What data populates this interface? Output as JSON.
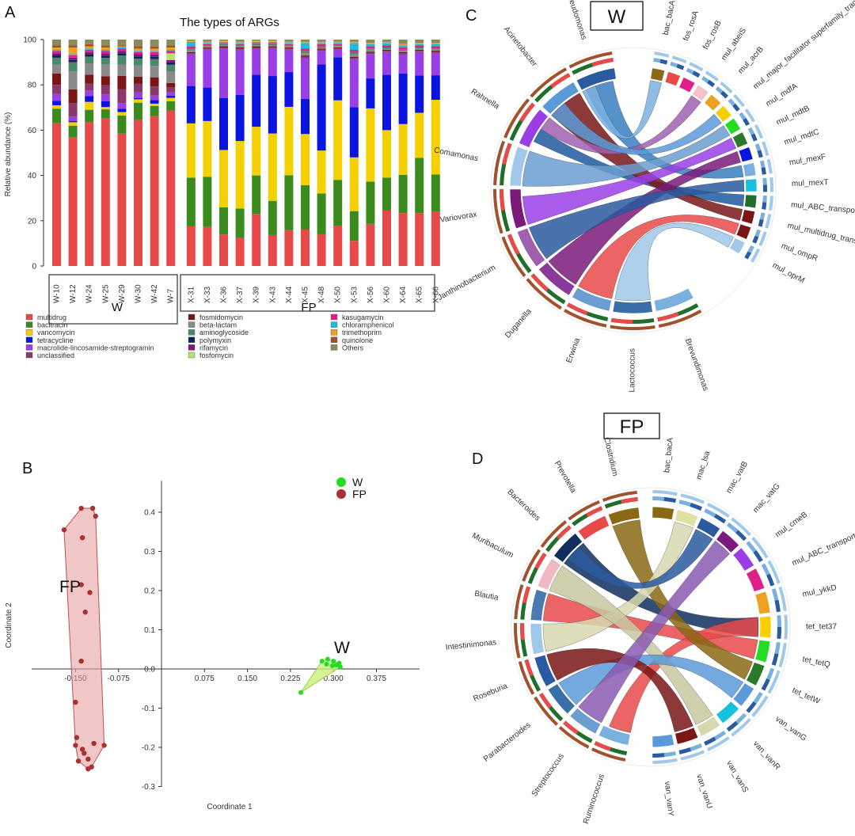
{
  "panels": {
    "A": {
      "letter": "A",
      "title": "The types of ARGs"
    },
    "B": {
      "letter": "B"
    },
    "C": {
      "letter": "C",
      "box_label": "W"
    },
    "D": {
      "letter": "D",
      "box_label": "FP"
    }
  },
  "colors": {
    "multidrug": "#e84a4a",
    "bacitracin": "#3a8a1e",
    "vancomycin": "#f5d000",
    "tetracycline": "#0a14e0",
    "macrolide-lincosamide-streptogramin": "#9a3ee6",
    "unclassified": "#8a3a6a",
    "fosmidomycin": "#7a1616",
    "beta-lactam": "#8a8a8a",
    "aminoglycoside": "#4a8a6a",
    "polymyxin": "#142060",
    "rifamycin": "#7a1a7a",
    "fosfomycin": "#b8e06a",
    "kasugamycin": "#e0208a",
    "chloramphenicol": "#18c0e0",
    "trimethoprim": "#f0a020",
    "quinolone": "#a0522d",
    "Others": "#8a8a5a",
    "W_point": "#22dd22",
    "FP_point": "#a83232",
    "W_hull": "#c8f07a",
    "FP_hull": "#e8a0a0"
  },
  "chart_data": [
    {
      "type": "bar",
      "stacked": true,
      "title": "The types of ARGs",
      "xlabel": "",
      "ylabel": "Relative abundance (%)",
      "ylim": [
        0,
        100
      ],
      "yticks": [
        0,
        20,
        40,
        60,
        80,
        100
      ],
      "groups": [
        {
          "name": "W",
          "categories": [
            "W-10",
            "W-12",
            "W-24",
            "W-25",
            "W-29",
            "W-30",
            "W-42",
            "W-7"
          ]
        },
        {
          "name": "FP",
          "categories": [
            "X-31",
            "X-33",
            "X-36",
            "X-37",
            "X-39",
            "X-43",
            "X-44",
            "X-45",
            "X-48",
            "X-50",
            "X-53",
            "X-56",
            "X-60",
            "X-64",
            "X-65",
            "X-66"
          ]
        }
      ],
      "categories": [
        "W-10",
        "W-12",
        "W-24",
        "W-25",
        "W-29",
        "W-30",
        "W-42",
        "W-7",
        "X-31",
        "X-33",
        "X-36",
        "X-37",
        "X-39",
        "X-43",
        "X-44",
        "X-45",
        "X-48",
        "X-50",
        "X-53",
        "X-56",
        "X-60",
        "X-64",
        "X-65",
        "X-66"
      ],
      "series": [
        {
          "name": "multidrug",
          "values": [
            63,
            57,
            63.5,
            64.5,
            58.5,
            65,
            65.5,
            68,
            17.5,
            17.5,
            14,
            12.5,
            23,
            14,
            16,
            16,
            14,
            18,
            11,
            19,
            24.5,
            23.5,
            23.5,
            24.5
          ]
        },
        {
          "name": "bacitracin",
          "values": [
            6.5,
            5,
            5.5,
            4,
            8,
            7.5,
            4.5,
            4,
            21.5,
            22.5,
            12,
            13,
            17,
            15.5,
            24.5,
            19.5,
            18,
            21,
            13,
            19,
            14.5,
            17,
            24.5,
            16.5
          ]
        },
        {
          "name": "vancomycin",
          "values": [
            1.5,
            1.5,
            3.5,
            1,
            1.5,
            1.5,
            1,
            1.5,
            24,
            25,
            25.5,
            30,
            21.5,
            30.5,
            30.5,
            22.5,
            19,
            36,
            23.5,
            33,
            21,
            22.5,
            20,
            33.5
          ]
        },
        {
          "name": "tetracycline",
          "values": [
            2,
            0.5,
            2.5,
            2.5,
            1.5,
            0.5,
            1.5,
            1,
            16.5,
            15,
            23,
            20.5,
            23,
            26,
            15.5,
            15.5,
            38,
            19.5,
            22,
            13.5,
            24.5,
            22.5,
            16.5,
            11
          ]
        },
        {
          "name": "macrolide-lincosamide-streptogramin",
          "values": [
            3,
            2,
            2.5,
            3,
            2.5,
            2.5,
            2,
            1.5,
            14,
            17,
            22,
            20,
            11.5,
            12.5,
            10,
            18,
            6,
            3.5,
            21,
            11,
            10,
            8.5,
            10.5,
            10
          ]
        },
        {
          "name": "unclassified",
          "values": [
            4,
            6,
            3,
            4,
            6,
            4,
            4,
            2,
            0.5,
            0.5,
            0.5,
            0.5,
            0.5,
            0.5,
            0.5,
            0.5,
            0.5,
            0.5,
            0.5,
            0.5,
            0.5,
            0.5,
            0.5,
            0.5
          ]
        },
        {
          "name": "fosmidomycin",
          "values": [
            5,
            6,
            4,
            4,
            6,
            3,
            4,
            2,
            0.5,
            0.5,
            0.5,
            0.5,
            0.5,
            0.5,
            0.5,
            0.5,
            0.5,
            0.5,
            0.5,
            0.5,
            0.5,
            0.5,
            0.5,
            0.5
          ]
        },
        {
          "name": "beta-lactam",
          "values": [
            4,
            8,
            5,
            5,
            5,
            5,
            5,
            5,
            1,
            0.5,
            0.5,
            0.5,
            0.5,
            0.5,
            0.5,
            1,
            0.5,
            0.5,
            1,
            1,
            0.5,
            0.5,
            0.5,
            0.5
          ]
        },
        {
          "name": "aminoglycoside",
          "values": [
            3,
            4,
            3,
            3,
            4,
            3,
            3,
            3,
            0.5,
            0.5,
            0.5,
            0.5,
            0.5,
            0.5,
            0.5,
            1,
            0.5,
            0.5,
            1,
            0.5,
            0.5,
            0.5,
            0.5,
            0.5
          ]
        },
        {
          "name": "polymyxin",
          "values": [
            1,
            1,
            1,
            1,
            1,
            1,
            1,
            1,
            0,
            0,
            0,
            0,
            0,
            0,
            0,
            0,
            0,
            0,
            0,
            0,
            0,
            0,
            0,
            0
          ]
        },
        {
          "name": "rifamycin",
          "values": [
            1,
            1,
            1,
            1,
            1,
            1,
            1,
            1,
            0,
            0,
            0,
            0,
            0,
            0,
            0,
            0,
            0,
            0,
            0,
            0,
            0,
            0,
            0,
            0
          ]
        },
        {
          "name": "fosfomycin",
          "values": [
            0,
            0,
            0,
            0,
            0,
            0,
            0,
            3,
            0,
            0,
            0,
            0,
            0,
            0,
            0,
            0,
            0,
            0,
            0,
            0,
            0,
            0,
            0,
            0
          ]
        },
        {
          "name": "kasugamycin",
          "values": [
            1,
            1,
            1,
            1,
            1,
            1,
            1,
            1,
            1,
            0.5,
            0.5,
            0.5,
            0.5,
            0.5,
            0.5,
            1,
            1,
            0.5,
            1,
            1,
            1,
            1,
            1,
            1
          ]
        },
        {
          "name": "chloramphenicol",
          "values": [
            0.5,
            0.5,
            0.5,
            0.5,
            0.5,
            0.5,
            0.5,
            0.5,
            2,
            0.5,
            0.5,
            0.5,
            0.5,
            0.5,
            0.5,
            2.5,
            0.5,
            0.5,
            3,
            1,
            1,
            1,
            0.5,
            1
          ]
        },
        {
          "name": "trimethoprim",
          "values": [
            1,
            3,
            1,
            1,
            0.5,
            1,
            1,
            1,
            0.5,
            0.5,
            0.5,
            0.5,
            0.5,
            0.5,
            0.5,
            0.5,
            0.5,
            0.5,
            0.5,
            0.5,
            0.5,
            0.5,
            0.5,
            0.5
          ]
        },
        {
          "name": "quinolone",
          "values": [
            1,
            1,
            1,
            1,
            0.5,
            1,
            1,
            1,
            0,
            0,
            0,
            0,
            0,
            0,
            0,
            0,
            0,
            0,
            0,
            0,
            0,
            0,
            0,
            0
          ]
        },
        {
          "name": "Others",
          "values": [
            2.5,
            2.5,
            2,
            2.5,
            2.5,
            3,
            3,
            2.5,
            0.5,
            1,
            0.5,
            1,
            0.5,
            0.5,
            1,
            1,
            1,
            1,
            1,
            1.5,
            1,
            2,
            1.5,
            1.5
          ]
        }
      ],
      "legend": [
        [
          "multidrug",
          "bacitracin",
          "vancomycin",
          "tetracycline",
          "macrolide-lincosamide-streptogramin",
          "unclassified"
        ],
        [
          "fosmidomycin",
          "beta-lactam",
          "aminoglycoside",
          "polymyxin",
          "rifamycin",
          "fosfomycin"
        ],
        [
          "kasugamycin",
          "chloramphenicol",
          "trimethoprim",
          "quinolone",
          "Others"
        ]
      ]
    },
    {
      "type": "scatter",
      "xlabel": "Coordinate 1",
      "ylabel": "Coordinate 2",
      "xlim": [
        -0.21,
        0.4
      ],
      "ylim": [
        -0.3,
        0.48
      ],
      "xticks": [
        -0.15,
        -0.075,
        0.075,
        0.15,
        0.225,
        0.3,
        0.375
      ],
      "xtick_labels": [
        "-0.150",
        "-0.075",
        "0.075",
        "0.150",
        "0.225",
        "0.300",
        "0.375"
      ],
      "yticks": [
        0.4,
        0.3,
        0.2,
        0.1,
        0.0,
        -0.1,
        -0.2,
        -0.3
      ],
      "ytick_labels": [
        "0.4",
        "0.3",
        "0.2",
        "0.1",
        "0.0",
        "-0.1",
        "-0.2",
        "-0.3"
      ],
      "legend": [
        "W",
        "FP"
      ],
      "group_labels": {
        "FP": "FP",
        "W": "W"
      },
      "series": [
        {
          "name": "W",
          "points": [
            [
              0.243,
              -0.06
            ],
            [
              0.28,
              0.02
            ],
            [
              0.29,
              0.025
            ],
            [
              0.3,
              0.02
            ],
            [
              0.305,
              0.01
            ],
            [
              0.31,
              0.015
            ],
            [
              0.312,
              0.005
            ],
            [
              0.298,
              0.008
            ],
            [
              0.288,
              0.012
            ]
          ]
        },
        {
          "name": "FP",
          "points": [
            [
              -0.14,
              0.41
            ],
            [
              -0.12,
              0.41
            ],
            [
              -0.115,
              0.39
            ],
            [
              -0.17,
              0.355
            ],
            [
              -0.138,
              0.335
            ],
            [
              -0.14,
              0.215
            ],
            [
              -0.125,
              0.195
            ],
            [
              -0.133,
              0.145
            ],
            [
              -0.14,
              0.02
            ],
            [
              -0.15,
              -0.085
            ],
            [
              -0.148,
              -0.175
            ],
            [
              -0.15,
              -0.195
            ],
            [
              -0.118,
              -0.19
            ],
            [
              -0.138,
              -0.205
            ],
            [
              -0.135,
              -0.215
            ],
            [
              -0.145,
              -0.235
            ],
            [
              -0.128,
              -0.23
            ],
            [
              -0.122,
              -0.25
            ],
            [
              -0.128,
              -0.255
            ],
            [
              -0.1,
              -0.195
            ]
          ]
        }
      ]
    },
    {
      "type": "chord",
      "title": "W",
      "segments_right": [
        "bac_bacA",
        "fos_rosA",
        "fos_rosB",
        "mul_abeiS",
        "mul_acrB",
        "mul_major_facilitator superfamily_transporter",
        "mul_mdfA",
        "mul_mdtB",
        "mul_mdtC",
        "mul_mexF",
        "mul_mexT",
        "mul_ABC_transporter",
        "mul_multidrug_transporter",
        "mul_ompR",
        "mul_oprM"
      ],
      "segments_left": [
        "Brevundimonas",
        "Lactococcus",
        "Erwinia",
        "Duganella",
        "Janthinobacterium",
        "Variovorax",
        "Comamonas",
        "Rahnella",
        "Acinetobacter",
        "Pseudomonas"
      ]
    },
    {
      "type": "chord",
      "title": "FP",
      "segments_right": [
        "bac_bacA",
        "mac_lsa",
        "mac_vatB",
        "mac_vatG",
        "mul_cmeB",
        "mul_ABC_transporter",
        "mul_ykkD",
        "tet_tet37",
        "tet_tetQ",
        "tet_tetW",
        "van_vanG",
        "van_vanR",
        "van_vanS",
        "van_vanU",
        "van_vanY"
      ],
      "segments_left": [
        "Ruminococcus",
        "Streptococcus",
        "Parabacteroides",
        "Roseburia",
        "Intestinimonas",
        "Blautia",
        "Muribaculum",
        "Bacteroides",
        "Prevotella",
        "Clostridium"
      ]
    }
  ]
}
